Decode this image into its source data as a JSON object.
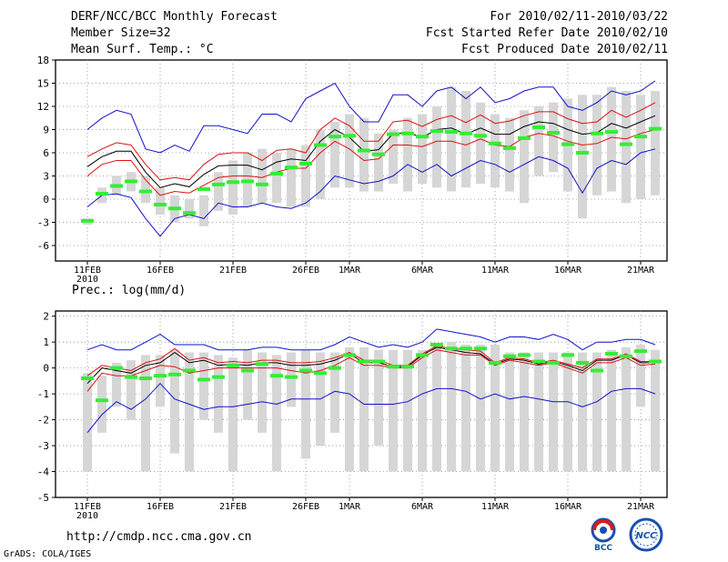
{
  "header": {
    "title": "DERF/NCC/BCC Monthly Forecast",
    "member_size": "Member Size=32",
    "variable": "Mean Surf. Temp.: °C",
    "period": "For 2010/02/11-2010/03/22",
    "started": "Fcst Started Refer Date 2010/02/10",
    "produced": "Fcst Produced Date 2010/02/11"
  },
  "footer": {
    "url": "http://cmdp.ncc.cma.gov.cn",
    "credit": "GrADS: COLA/IGES",
    "logo_left_text": "BCC",
    "logo_right_text": "NCC"
  },
  "colors": {
    "box": "#d6d6d6",
    "median": "#33ee33",
    "mean": "#000000",
    "ci": "#dd1111",
    "range": "#1111cc",
    "grid": "#888888"
  },
  "chart_data": [
    {
      "type": "box",
      "name": "temperature",
      "ylabel": "Mean Surf. Temp.: °C",
      "ylim": [
        -8,
        18
      ],
      "yticks": [
        -6,
        -3,
        0,
        3,
        6,
        9,
        12,
        15,
        18
      ],
      "xticks": [
        {
          "day": 0,
          "label": "11FEB",
          "sub": "2010"
        },
        {
          "day": 5,
          "label": "16FEB"
        },
        {
          "day": 10,
          "label": "21FEB"
        },
        {
          "day": 15,
          "label": "26FEB"
        },
        {
          "day": 18,
          "label": "1MAR"
        },
        {
          "day": 23,
          "label": "6MAR"
        },
        {
          "day": 28,
          "label": "11MAR"
        },
        {
          "day": 33,
          "label": "16MAR"
        },
        {
          "day": 38,
          "label": "21MAR"
        }
      ],
      "days": 40,
      "box_low": [
        -3.3,
        -0.5,
        0.5,
        1.0,
        -0.5,
        -2.0,
        -3.0,
        -2.5,
        -3.5,
        -1.5,
        -2.0,
        -1.0,
        -0.5,
        -0.5,
        -1.0,
        -1.0,
        0.0,
        1.5,
        1.5,
        1.0,
        1.0,
        2.0,
        1.0,
        2.0,
        1.5,
        1.0,
        1.5,
        2.0,
        1.5,
        1.0,
        -0.5,
        3.0,
        3.5,
        1.0,
        -2.5,
        0.5,
        1.0,
        -0.5,
        0.0,
        0.5
      ],
      "box_high": [
        -2.5,
        1.5,
        3.0,
        3.5,
        3.0,
        1.5,
        0.5,
        0.0,
        0.5,
        3.5,
        5.0,
        6.0,
        6.5,
        6.0,
        6.5,
        7.0,
        9.0,
        10.0,
        11.0,
        10.5,
        8.5,
        9.0,
        10.5,
        11.0,
        12.0,
        14.5,
        14.0,
        12.5,
        11.0,
        10.5,
        11.5,
        12.0,
        12.5,
        13.0,
        13.5,
        13.5,
        14.5,
        14.0,
        13.5,
        14.0
      ],
      "median": [
        -2.8,
        0.7,
        1.7,
        2.3,
        1.0,
        -0.7,
        -1.2,
        -1.8,
        1.3,
        1.9,
        2.2,
        2.3,
        1.9,
        3.3,
        4.1,
        4.6,
        7.0,
        8.1,
        8.2,
        6.3,
        5.8,
        8.4,
        8.5,
        8.1,
        8.8,
        8.7,
        8.5,
        8.2,
        7.2,
        6.6,
        7.9,
        9.3,
        8.6,
        7.1,
        6.0,
        8.5,
        8.7,
        7.1,
        8.1,
        9.1
      ],
      "ci_low": [
        3.0,
        4.5,
        5.0,
        5.0,
        2.5,
        0.5,
        1.0,
        0.8,
        1.8,
        2.8,
        3.0,
        3.0,
        2.8,
        3.5,
        4.0,
        4.0,
        6.0,
        7.5,
        6.5,
        5.0,
        5.2,
        7.0,
        7.0,
        6.8,
        7.5,
        7.5,
        7.0,
        7.8,
        7.0,
        6.8,
        8.0,
        8.5,
        8.2,
        7.5,
        7.0,
        7.2,
        8.0,
        7.8,
        8.5,
        9.0
      ],
      "mean": [
        4.2,
        5.5,
        6.2,
        6.2,
        3.5,
        1.5,
        2.0,
        1.6,
        3.2,
        4.3,
        4.4,
        4.4,
        3.8,
        4.8,
        5.2,
        5.0,
        7.5,
        9.0,
        8.0,
        6.2,
        6.4,
        8.5,
        8.6,
        8.0,
        9.0,
        9.2,
        8.4,
        9.2,
        8.4,
        8.4,
        9.4,
        10.0,
        9.8,
        9.0,
        8.4,
        8.6,
        9.8,
        9.2,
        10.0,
        10.8
      ],
      "ci_high": [
        5.5,
        6.5,
        7.3,
        7.0,
        4.5,
        2.5,
        2.8,
        2.5,
        4.5,
        5.8,
        6.0,
        6.0,
        5.0,
        6.3,
        6.5,
        6.0,
        9.0,
        10.5,
        9.5,
        7.5,
        7.5,
        10.0,
        10.2,
        9.4,
        10.3,
        10.8,
        9.9,
        10.9,
        9.8,
        10.1,
        10.8,
        11.3,
        11.3,
        10.4,
        9.8,
        10.0,
        11.5,
        10.6,
        11.5,
        12.5
      ],
      "range_low": [
        -1.0,
        0.5,
        0.7,
        0.2,
        -2.5,
        -4.8,
        -2.5,
        -2.0,
        -2.5,
        -0.5,
        -1.0,
        -1.0,
        -0.5,
        -1.0,
        -1.2,
        -0.5,
        1.0,
        3.0,
        2.5,
        2.0,
        2.3,
        3.0,
        4.5,
        3.5,
        4.5,
        3.0,
        4.0,
        5.0,
        4.5,
        3.5,
        4.5,
        5.5,
        5.0,
        4.0,
        0.8,
        4.0,
        5.0,
        4.5,
        6.0,
        6.5
      ],
      "range_high": [
        9.0,
        10.5,
        11.5,
        11.0,
        6.5,
        6.0,
        7.0,
        6.2,
        9.5,
        9.5,
        9.0,
        8.5,
        11.0,
        11.0,
        10.0,
        13.0,
        14.0,
        15.0,
        12.0,
        10.0,
        10.0,
        13.5,
        13.5,
        12.0,
        14.0,
        14.5,
        13.0,
        14.5,
        12.5,
        13.0,
        14.0,
        14.5,
        14.5,
        12.0,
        11.5,
        12.5,
        14.0,
        13.5,
        14.0,
        15.3
      ]
    },
    {
      "type": "box",
      "name": "precipitation",
      "ylabel": "Prec.: log(mm/d)",
      "ylim": [
        -5,
        2.2
      ],
      "yticks": [
        -5,
        -4,
        -3,
        -2,
        -1,
        0,
        1,
        2
      ],
      "xticks": [
        {
          "day": 0,
          "label": "11FEB",
          "sub": "2010"
        },
        {
          "day": 5,
          "label": "16FEB"
        },
        {
          "day": 10,
          "label": "21FEB"
        },
        {
          "day": 15,
          "label": "26FEB"
        },
        {
          "day": 18,
          "label": "1MAR"
        },
        {
          "day": 23,
          "label": "6MAR"
        },
        {
          "day": 28,
          "label": "11MAR"
        },
        {
          "day": 33,
          "label": "16MAR"
        },
        {
          "day": 38,
          "label": "21MAR"
        }
      ],
      "days": 40,
      "box_low": [
        -4.0,
        -2.5,
        -1.5,
        -2.0,
        -4.0,
        -1.5,
        -3.3,
        -4.0,
        -2.0,
        -2.5,
        -4.0,
        -2.0,
        -2.5,
        -4.0,
        -1.5,
        -3.5,
        -3.0,
        -2.5,
        -4.0,
        -4.0,
        -3.0,
        -4.0,
        -4.0,
        -4.0,
        -4.0,
        -4.0,
        -4.0,
        -4.0,
        -4.0,
        -4.0,
        -4.0,
        -4.0,
        -4.0,
        -4.0,
        -4.0,
        -4.0,
        -4.0,
        -4.0,
        -1.5,
        -4.0
      ],
      "box_high": [
        -0.2,
        -0.3,
        0.2,
        0.3,
        0.5,
        0.5,
        0.7,
        0.6,
        0.6,
        0.5,
        0.4,
        0.7,
        0.6,
        0.5,
        0.6,
        0.7,
        0.6,
        0.6,
        0.8,
        0.8,
        0.7,
        0.7,
        0.7,
        0.7,
        0.9,
        1.0,
        0.9,
        0.9,
        0.9,
        0.6,
        0.6,
        0.6,
        0.6,
        0.6,
        0.6,
        0.6,
        0.7,
        0.8,
        0.9,
        0.7
      ],
      "median": [
        -0.4,
        -1.25,
        0.0,
        -0.35,
        -0.4,
        -0.3,
        -0.25,
        -0.1,
        -0.45,
        -0.35,
        0.1,
        -0.1,
        0.15,
        -0.3,
        -0.35,
        -0.1,
        -0.2,
        0.0,
        0.5,
        0.25,
        0.25,
        0.05,
        0.05,
        0.5,
        0.9,
        0.75,
        0.75,
        0.75,
        0.2,
        0.45,
        0.5,
        0.25,
        0.2,
        0.5,
        0.2,
        -0.1,
        0.55,
        0.45,
        0.65,
        0.25
      ],
      "ci_low": [
        -0.9,
        -0.2,
        -0.3,
        -0.3,
        -0.1,
        0.1,
        0.05,
        -0.2,
        -0.1,
        0.0,
        0.0,
        0.0,
        0.0,
        0.0,
        -0.1,
        -0.2,
        -0.1,
        0.1,
        0.4,
        0.1,
        0.1,
        0.0,
        0.0,
        0.4,
        0.7,
        0.6,
        0.5,
        0.5,
        0.1,
        0.3,
        0.2,
        0.1,
        0.2,
        0.0,
        -0.2,
        0.2,
        0.2,
        0.4,
        0.1,
        0.15
      ],
      "mean": [
        -0.6,
        0.0,
        -0.1,
        -0.2,
        0.1,
        0.2,
        0.6,
        0.2,
        0.3,
        0.1,
        0.15,
        0.1,
        0.2,
        0.2,
        0.1,
        0.1,
        0.15,
        0.3,
        0.55,
        0.2,
        0.2,
        0.05,
        0.05,
        0.5,
        0.8,
        0.7,
        0.6,
        0.55,
        0.15,
        0.35,
        0.3,
        0.15,
        0.25,
        0.1,
        -0.1,
        0.3,
        0.3,
        0.5,
        0.2,
        0.2
      ],
      "ci_high": [
        -0.3,
        0.1,
        0.0,
        -0.1,
        0.2,
        0.35,
        0.75,
        0.3,
        0.4,
        0.2,
        0.25,
        0.2,
        0.3,
        0.3,
        0.2,
        0.2,
        0.25,
        0.4,
        0.6,
        0.3,
        0.3,
        0.1,
        0.1,
        0.55,
        0.85,
        0.75,
        0.7,
        0.65,
        0.2,
        0.4,
        0.35,
        0.2,
        0.3,
        0.15,
        0.0,
        0.35,
        0.35,
        0.55,
        0.25,
        0.25
      ],
      "range_low": [
        -2.5,
        -1.8,
        -1.3,
        -1.6,
        -1.2,
        -0.6,
        -1.2,
        -1.4,
        -1.6,
        -1.5,
        -1.5,
        -1.4,
        -1.3,
        -1.4,
        -1.2,
        -1.2,
        -1.2,
        -0.9,
        -1.0,
        -1.4,
        -1.4,
        -1.4,
        -1.3,
        -1.0,
        -0.8,
        -0.8,
        -0.9,
        -1.2,
        -1.0,
        -1.2,
        -1.1,
        -1.2,
        -1.3,
        -1.3,
        -1.5,
        -1.3,
        -0.9,
        -0.8,
        -0.8,
        -1.0
      ],
      "range_high": [
        0.7,
        0.9,
        0.7,
        0.7,
        1.0,
        1.3,
        0.9,
        0.9,
        0.9,
        0.7,
        0.7,
        0.7,
        0.8,
        0.8,
        0.7,
        0.7,
        0.7,
        0.9,
        1.2,
        1.0,
        0.8,
        0.9,
        0.8,
        1.0,
        1.5,
        1.4,
        1.3,
        1.2,
        1.0,
        1.2,
        1.2,
        1.1,
        1.3,
        1.1,
        0.7,
        1.0,
        1.0,
        1.1,
        1.1,
        0.9
      ]
    }
  ]
}
